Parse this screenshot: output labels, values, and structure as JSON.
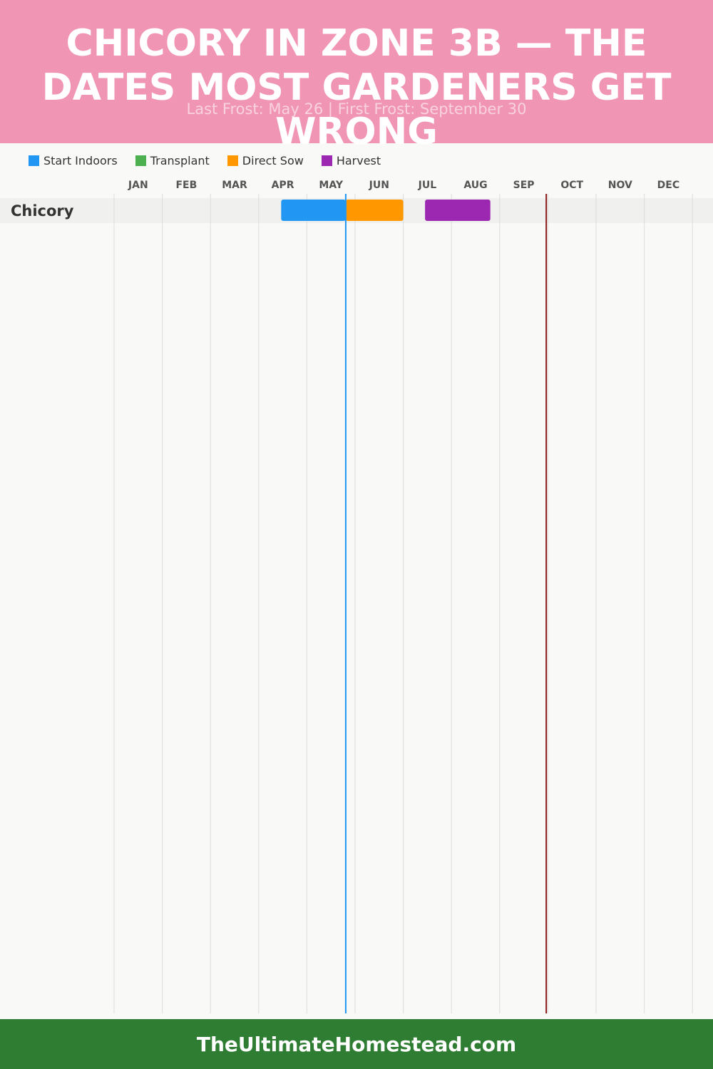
{
  "header": {
    "title": "CHICORY IN ZONE 3B — THE DATES MOST GARDENERS GET WRONG",
    "subtitle": "Last Frost: May 26 | First Frost: September 30",
    "background": "#f195b4"
  },
  "legend": [
    {
      "label": "Start Indoors",
      "color": "#2196f3"
    },
    {
      "label": "Transplant",
      "color": "#4caf50"
    },
    {
      "label": "Direct Sow",
      "color": "#ff9800"
    },
    {
      "label": "Harvest",
      "color": "#9c27b0"
    }
  ],
  "footer": {
    "text": "TheUltimateHomestead.com",
    "background": "#2e7d32"
  },
  "chart_data": {
    "type": "gantt",
    "months": [
      "JAN",
      "FEB",
      "MAR",
      "APR",
      "MAY",
      "JUN",
      "JUL",
      "AUG",
      "SEP",
      "OCT",
      "NOV",
      "DEC"
    ],
    "rows": [
      {
        "crop": "Chicory",
        "tasks": [
          {
            "activity": "Start Indoors",
            "start": "Apr 15",
            "end": "May 26",
            "color": "#2196f3"
          },
          {
            "activity": "Direct Sow",
            "start": "May 26",
            "end": "Jul 1",
            "color": "#ff9800"
          },
          {
            "activity": "Harvest",
            "start": "Jul 15",
            "end": "Aug 26",
            "color": "#9c27b0"
          }
        ]
      }
    ],
    "markers": [
      {
        "event": "Last Frost",
        "date": "May 26",
        "color": "#2196f3"
      },
      {
        "event": "First Frost",
        "date": "Sep 30",
        "color": "#8b1a1a"
      }
    ],
    "grid": true
  }
}
